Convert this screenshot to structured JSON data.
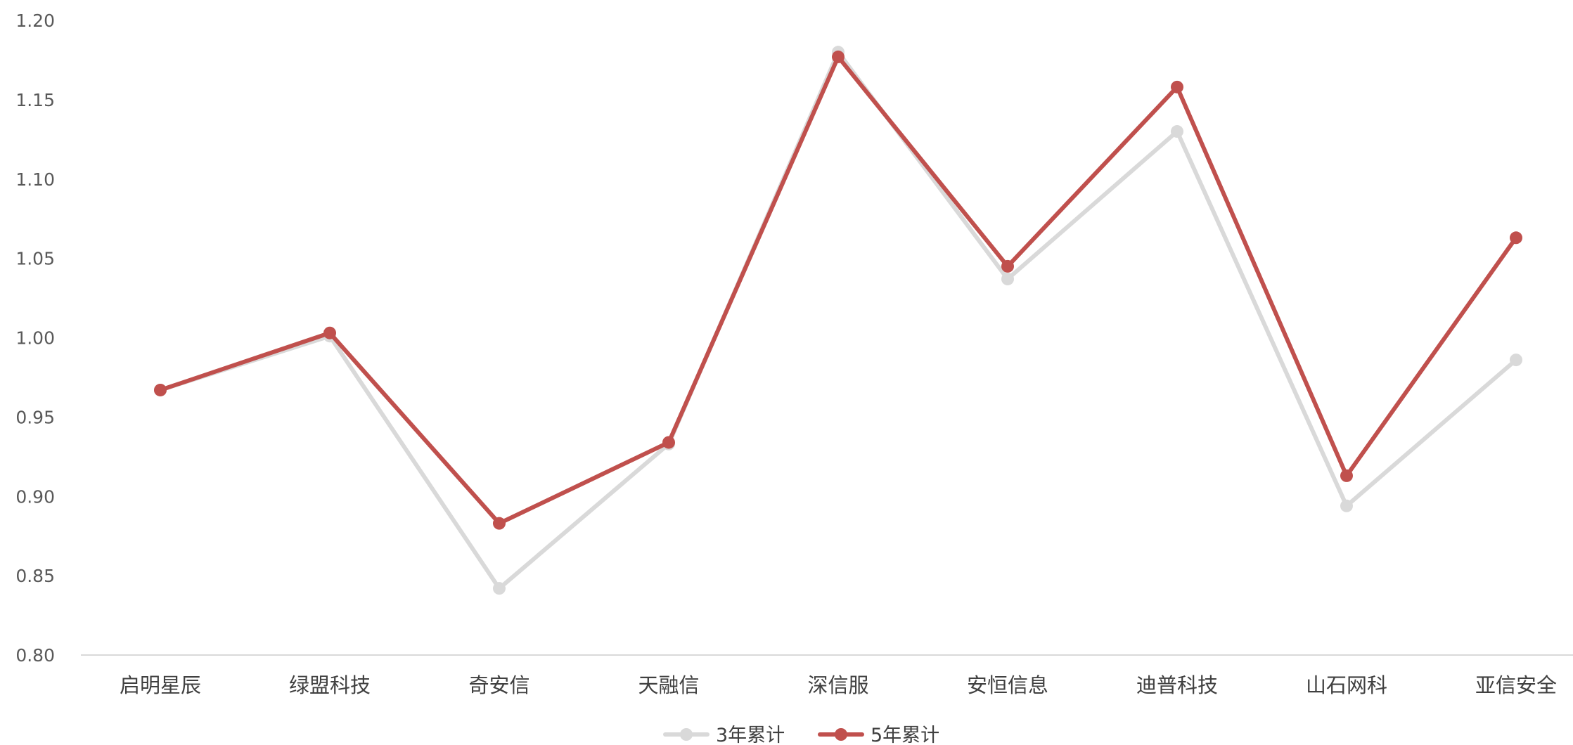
{
  "chart_data": {
    "type": "line",
    "categories": [
      "启明星辰",
      "绿盟科技",
      "奇安信",
      "天融信",
      "深信服",
      "安恒信息",
      "迪普科技",
      "山石网科",
      "亚信安全"
    ],
    "series": [
      {
        "name": "3年累计",
        "color": "#d9d9d9",
        "values": [
          0.967,
          1.001,
          0.842,
          0.933,
          1.18,
          1.037,
          1.13,
          0.894,
          0.986
        ]
      },
      {
        "name": "5年累计",
        "color": "#c0504d",
        "values": [
          0.967,
          1.003,
          0.883,
          0.934,
          1.177,
          1.045,
          1.158,
          0.913,
          1.063
        ]
      }
    ],
    "ylim": [
      0.8,
      1.2
    ],
    "yticks": [
      "0.80",
      "0.85",
      "0.90",
      "0.95",
      "1.00",
      "1.05",
      "1.10",
      "1.15",
      "1.20"
    ],
    "xlabel": "",
    "ylabel": "",
    "title": "",
    "grid": false,
    "legend_position": "bottom"
  }
}
